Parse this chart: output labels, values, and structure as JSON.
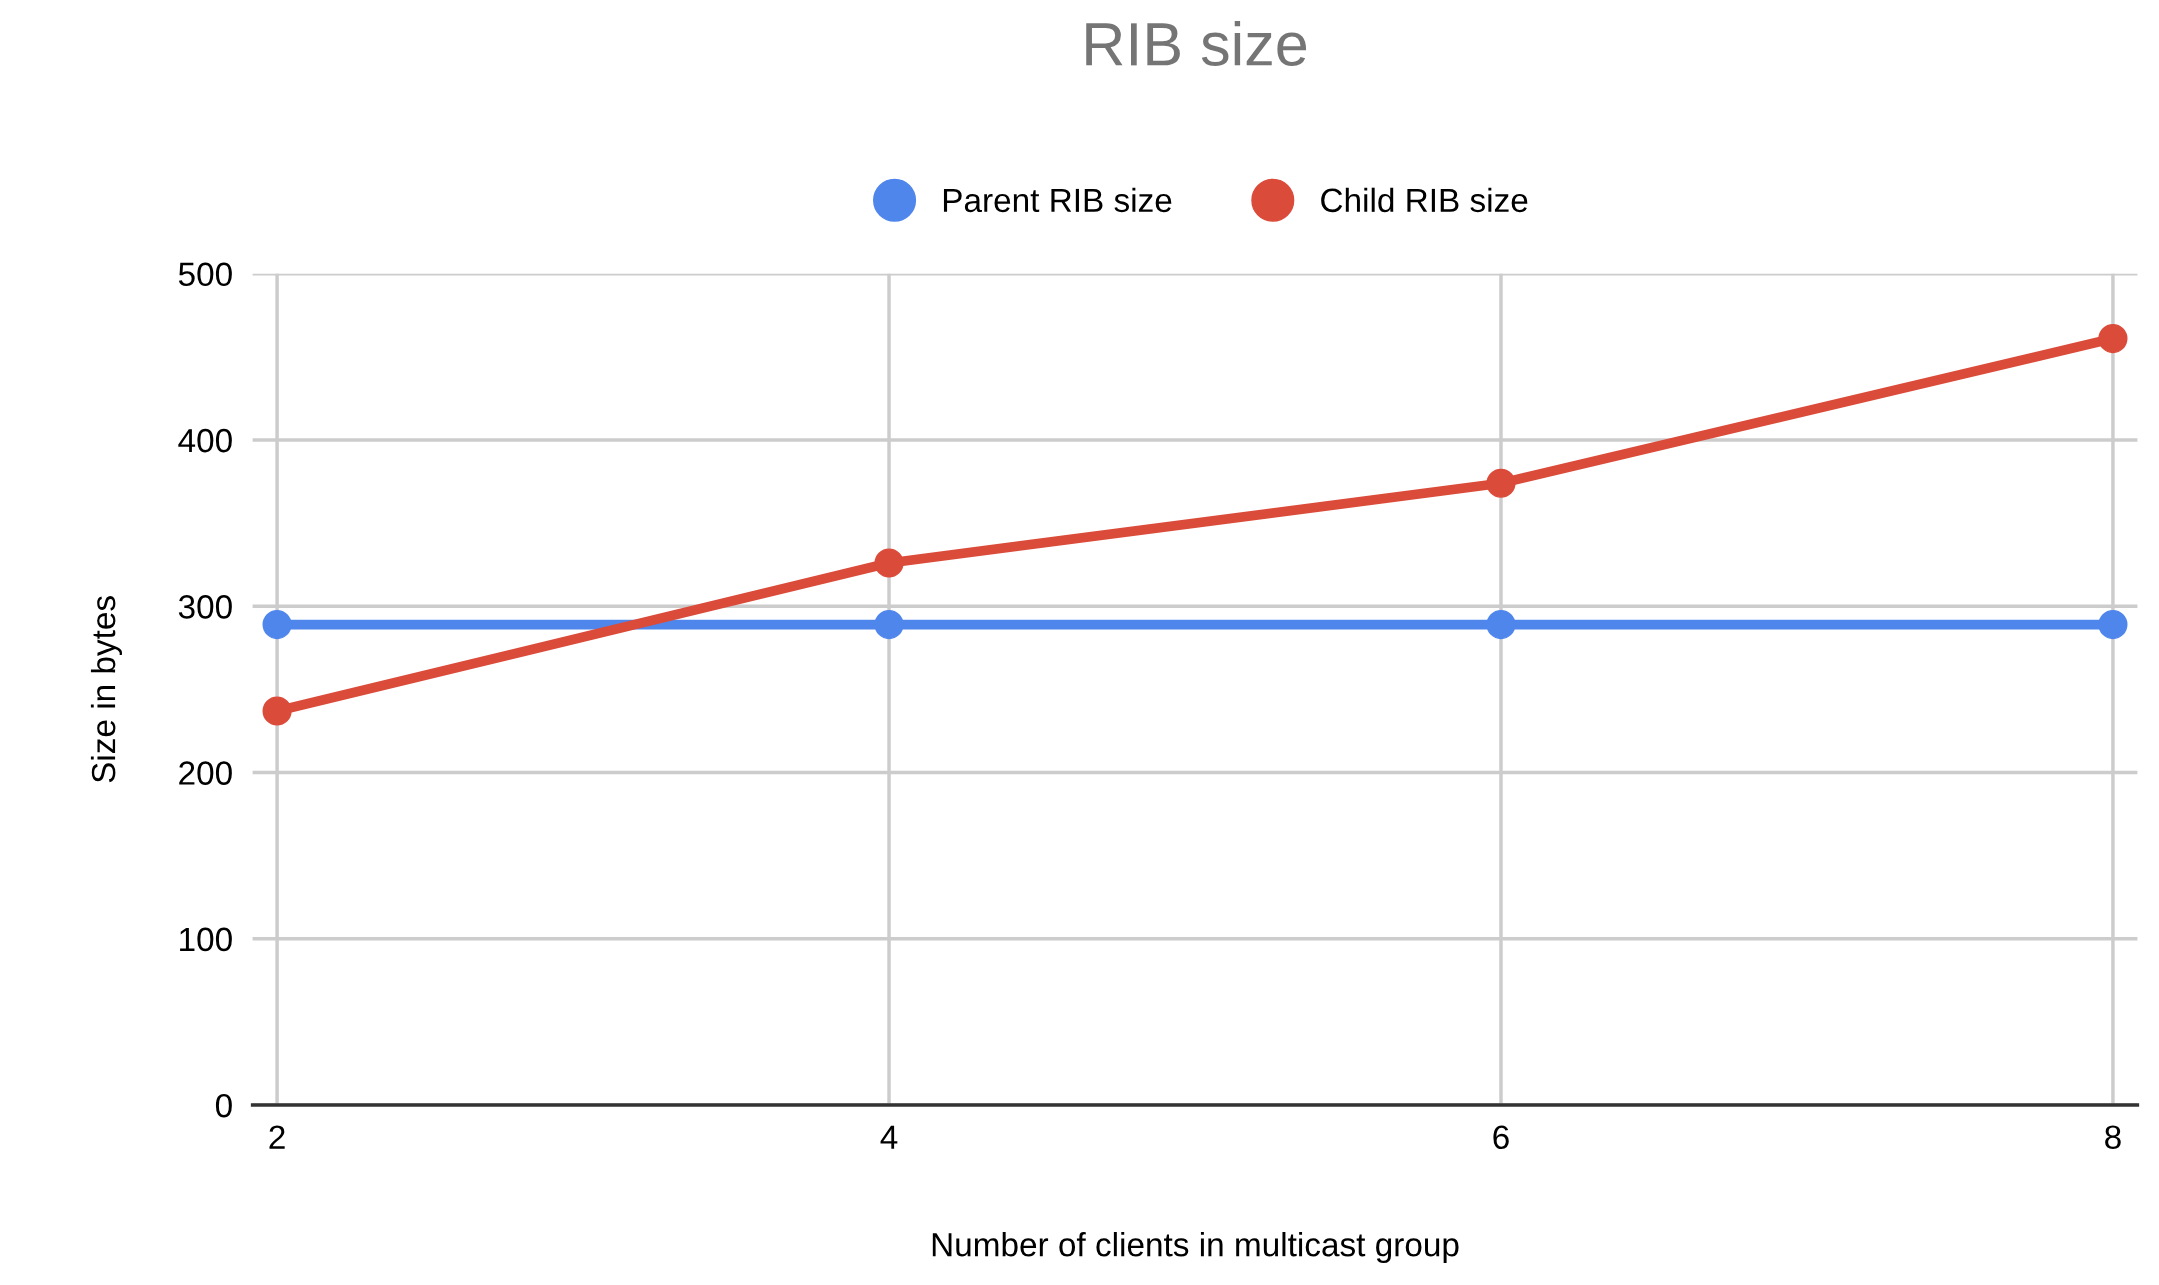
{
  "chart_data": {
    "type": "line",
    "title": "RIB size",
    "xlabel": "Number of clients in multicast group",
    "ylabel": "Size in bytes",
    "x": [
      2,
      4,
      6,
      8
    ],
    "series": [
      {
        "name": "Parent RIB size",
        "color": "#4f86ec",
        "values": [
          289,
          289,
          289,
          289
        ]
      },
      {
        "name": "Child RIB size",
        "color": "#db4b3a",
        "values": [
          237,
          326,
          374,
          461
        ]
      }
    ],
    "xlim": [
      1.92,
      8.08
    ],
    "xticks": [
      2,
      4,
      6,
      8
    ],
    "ylim": [
      0,
      500
    ],
    "yticks": [
      0,
      100,
      200,
      300,
      400,
      500
    ],
    "grid": true,
    "legend": "top",
    "marker": "circle",
    "line_style": "solid"
  }
}
